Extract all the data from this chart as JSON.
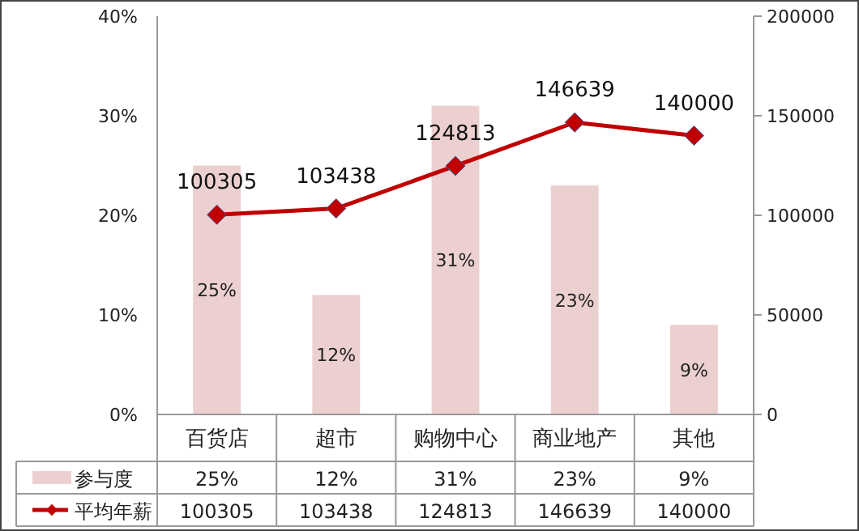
{
  "chart_data": {
    "type": "bar",
    "categories": [
      "百货店",
      "超市",
      "购物中心",
      "商业地产",
      "其他"
    ],
    "series": [
      {
        "name": "参与度",
        "color": "#ecd0d0",
        "values": [
          25,
          12,
          31,
          23,
          9
        ],
        "value_labels": [
          "25%",
          "12%",
          "31%",
          "23%",
          "9%"
        ]
      },
      {
        "name": "平均年薪",
        "type": "line",
        "axis": "y2",
        "color": "#c00000",
        "marker": "diamond",
        "values": [
          100305,
          103438,
          124813,
          146639,
          140000
        ],
        "value_labels": [
          "100305",
          "103438",
          "124813",
          "146639",
          "140000"
        ]
      }
    ],
    "ylim": [
      0,
      40
    ],
    "yticks": [
      {
        "value": 0,
        "label": "0%"
      },
      {
        "value": 10,
        "label": "10%"
      },
      {
        "value": 20,
        "label": "20%"
      },
      {
        "value": 30,
        "label": "30%"
      },
      {
        "value": 40,
        "label": "40%"
      }
    ],
    "y2lim": [
      0,
      200000
    ],
    "y2ticks": [
      0,
      50000,
      100000,
      150000,
      200000
    ],
    "grid": false,
    "legend": "bottom"
  }
}
